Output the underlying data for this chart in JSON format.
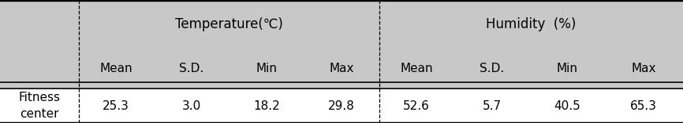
{
  "title_temp": "Temperature(℃)",
  "title_humid": "Humidity  (%)",
  "col_headers": [
    "Mean",
    "S.D.",
    "Min",
    "Max",
    "Mean",
    "S.D.",
    "Min",
    "Max"
  ],
  "row_label": "Fitness\ncenter",
  "row_values": [
    "25.3",
    "3.0",
    "18.2",
    "29.8",
    "52.6",
    "5.7",
    "40.5",
    "65.3"
  ],
  "header_bg": "#c8c8c8",
  "table_bg": "#ffffff",
  "text_color": "#000000",
  "font_size": 11,
  "header_font_size": 12
}
